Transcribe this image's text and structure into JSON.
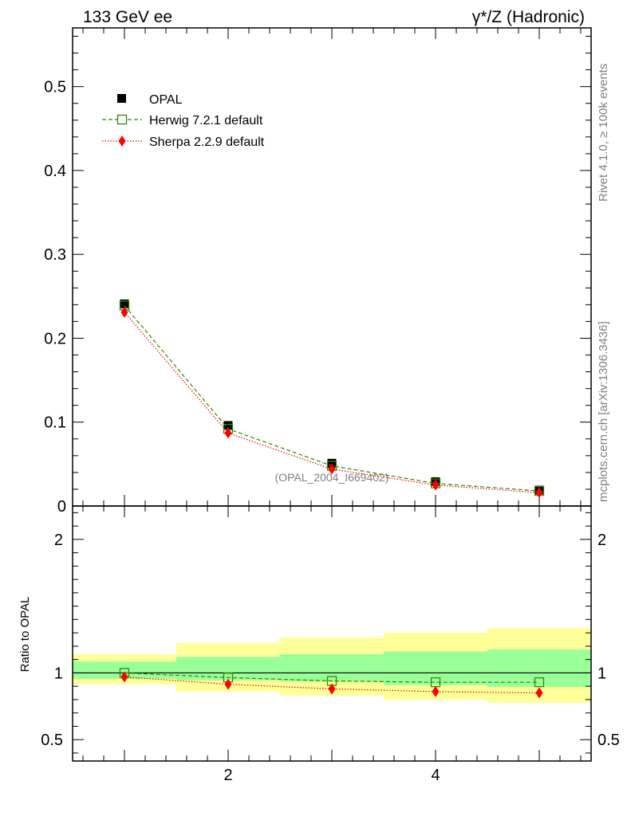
{
  "header": {
    "left_title": "133 GeV ee",
    "right_title": "γ*/Z (Hadronic)"
  },
  "side_labels": {
    "rivet": "Rivet 4.1.0, ≥ 100k events",
    "mcplots": "mcplots.cern.ch [arXiv:1306.3436]"
  },
  "analysis_ref": "(OPAL_2004_I669402)",
  "colors": {
    "data": "#000000",
    "herwig": "#2e8b00",
    "sherpa": "#ff0000",
    "band_inner": "#99ff99",
    "band_outer": "#ffff99"
  },
  "chart_data": [
    {
      "type": "line",
      "panel": "main",
      "xlim": [
        0.5,
        5.5
      ],
      "ylim": [
        0,
        0.57
      ],
      "y_ticks": [
        0,
        0.1,
        0.2,
        0.3,
        0.4,
        0.5
      ],
      "y_tick_labels": [
        "0",
        "0.1",
        "0.2",
        "0.3",
        "0.4",
        "0.5"
      ],
      "x": [
        1,
        2,
        3,
        4,
        5
      ],
      "legend": {
        "placement": "top-left",
        "entries": [
          "OPAL",
          "Herwig 7.2.1 default",
          "Sherpa 2.2.9 default"
        ]
      },
      "series": [
        {
          "name": "OPAL",
          "style": "data",
          "values": [
            0.241,
            0.096,
            0.051,
            0.029,
            0.019
          ],
          "errors": [
            0.003,
            0.002,
            0.0015,
            0.001,
            0.001
          ]
        },
        {
          "name": "Herwig 7.2.1 default",
          "style": "herwig",
          "values": [
            0.239,
            0.092,
            0.048,
            0.027,
            0.018
          ]
        },
        {
          "name": "Sherpa 2.2.9 default",
          "style": "sherpa",
          "values": [
            0.231,
            0.087,
            0.044,
            0.025,
            0.016
          ]
        }
      ]
    },
    {
      "type": "line",
      "panel": "ratio",
      "ylabel": "Ratio to OPAL",
      "xlim": [
        0.5,
        5.5
      ],
      "ylim": [
        0.34,
        2.25
      ],
      "y_ticks": [
        0.5,
        1,
        2
      ],
      "y_tick_labels": [
        "0.5",
        "1",
        "2"
      ],
      "x_ticks": [
        2,
        4
      ],
      "x_tick_labels": [
        "2",
        "4"
      ],
      "x": [
        1,
        2,
        3,
        4,
        5
      ],
      "bands": {
        "inner_low": [
          0.955,
          0.945,
          0.935,
          0.91,
          0.895
        ],
        "inner_high": [
          1.085,
          1.12,
          1.14,
          1.16,
          1.175
        ],
        "outer_low": [
          0.915,
          0.86,
          0.83,
          0.8,
          0.775
        ],
        "outer_high": [
          1.14,
          1.225,
          1.265,
          1.3,
          1.335
        ]
      },
      "series": [
        {
          "name": "Herwig 7.2.1 default",
          "style": "herwig",
          "values": [
            1.0,
            0.965,
            0.94,
            0.93,
            0.93
          ]
        },
        {
          "name": "Sherpa 2.2.9 default",
          "style": "sherpa",
          "values": [
            0.97,
            0.915,
            0.88,
            0.86,
            0.85
          ]
        }
      ]
    }
  ]
}
